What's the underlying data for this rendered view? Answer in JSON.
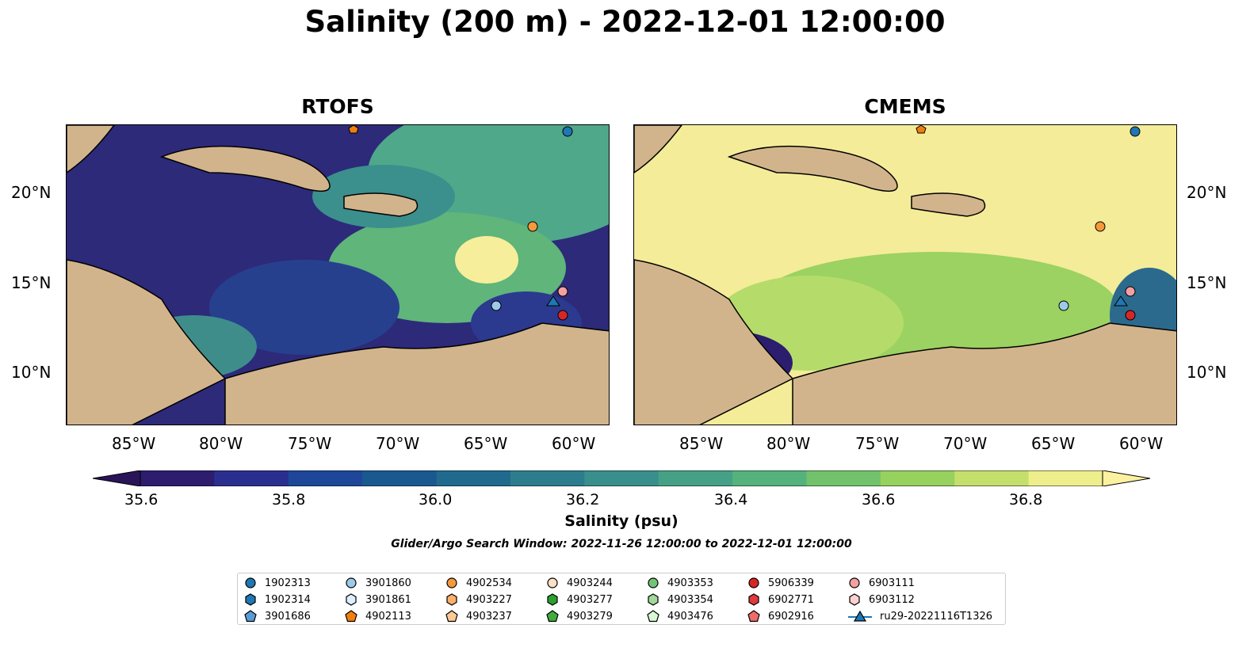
{
  "title": "Salinity (200 m) - 2022-12-01 12:00:00",
  "panels": [
    {
      "title": "RTOFS"
    },
    {
      "title": "CMEMS"
    }
  ],
  "axes": {
    "x_ticks": [
      "85°W",
      "80°W",
      "75°W",
      "70°W",
      "65°W",
      "60°W"
    ],
    "y_ticks": [
      "20°N",
      "15°N",
      "10°N"
    ]
  },
  "colorbar": {
    "label": "Salinity (psu)",
    "ticks": [
      "35.6",
      "35.8",
      "36.0",
      "36.2",
      "36.4",
      "36.6",
      "36.8"
    ],
    "range": [
      35.6,
      36.9
    ],
    "colors": [
      "#2c1d6e",
      "#2a2f8f",
      "#1f4799",
      "#1a5990",
      "#206a8e",
      "#2d7d8e",
      "#398f8c",
      "#45a186",
      "#56b27d",
      "#72c26c",
      "#97d15e",
      "#c4df6c",
      "#eeef8c"
    ],
    "extend_min_color": "#2a1458",
    "extend_max_color": "#fcf1a0"
  },
  "search_window": "Glider/Argo Search Window: 2022-11-26 12:00:00 to 2022-12-01 12:00:00",
  "legend": [
    {
      "label": "1902313",
      "marker": "circle",
      "color": "#1f77b4"
    },
    {
      "label": "1902314",
      "marker": "hexagon",
      "color": "#1f77b4"
    },
    {
      "label": "3901686",
      "marker": "pentagon",
      "color": "#5b9bd5"
    },
    {
      "label": "3901860",
      "marker": "circle",
      "color": "#9ecae9"
    },
    {
      "label": "3901861",
      "marker": "hexagon",
      "color": "#ddeeff"
    },
    {
      "label": "4902113",
      "marker": "pentagon",
      "color": "#f07f0e"
    },
    {
      "label": "4902534",
      "marker": "circle",
      "color": "#f59a3a"
    },
    {
      "label": "4903227",
      "marker": "hexagon",
      "color": "#fdae6b"
    },
    {
      "label": "4903237",
      "marker": "pentagon",
      "color": "#fdc894"
    },
    {
      "label": "4903244",
      "marker": "circle",
      "color": "#fde0c5"
    },
    {
      "label": "4903277",
      "marker": "hexagon",
      "color": "#2ca02c"
    },
    {
      "label": "4903279",
      "marker": "pentagon",
      "color": "#41ab3c"
    },
    {
      "label": "4903353",
      "marker": "circle",
      "color": "#74c476"
    },
    {
      "label": "4903354",
      "marker": "hexagon",
      "color": "#a1d99b"
    },
    {
      "label": "4903476",
      "marker": "pentagon",
      "color": "#d9f7d4"
    },
    {
      "label": "5906339",
      "marker": "circle",
      "color": "#d62728"
    },
    {
      "label": "6902771",
      "marker": "hexagon",
      "color": "#e0393e"
    },
    {
      "label": "6902916",
      "marker": "pentagon",
      "color": "#ef6b6b"
    },
    {
      "label": "6903111",
      "marker": "circle",
      "color": "#f4a0a0"
    },
    {
      "label": "6903112",
      "marker": "hexagon",
      "color": "#fbd0d0"
    },
    {
      "label": "ru29-20221116T1326",
      "marker": "triangle-line",
      "color": "#1f77b4"
    }
  ]
}
